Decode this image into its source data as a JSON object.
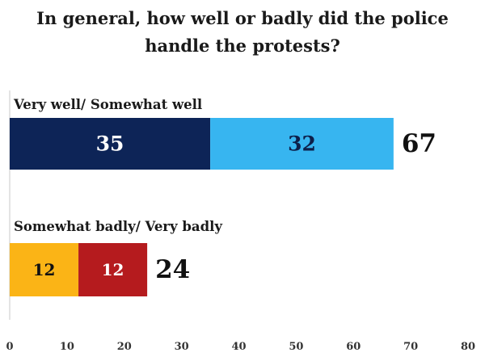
{
  "chart_data": {
    "type": "bar",
    "orientation": "horizontal",
    "stacked": true,
    "title": "In general, how well or badly did the police handle the protests?",
    "title_lines": [
      "In general, how well or badly did the police",
      "handle the protests?"
    ],
    "xlabel": "",
    "ylabel": "",
    "xlim": [
      0,
      80
    ],
    "x_ticks": [
      "0",
      "10",
      "20",
      "30",
      "40",
      "50",
      "60",
      "70",
      "80"
    ],
    "grid": false,
    "legend": "none",
    "groups": [
      {
        "label": "Very well/ Somewhat well",
        "total": "67",
        "segments": [
          {
            "value": 35,
            "label": "35",
            "color": "#0d2457",
            "text_color": "#ffffff"
          },
          {
            "value": 32,
            "label": "32",
            "color": "#37b5f0",
            "text_color": "#0d1f4a"
          }
        ]
      },
      {
        "label": "Somewhat badly/ Very badly",
        "total": "24",
        "segments": [
          {
            "value": 12,
            "label": "12",
            "color": "#fbb416",
            "text_color": "#111111"
          },
          {
            "value": 12,
            "label": "12",
            "color": "#b51b1e",
            "text_color": "#ffffff"
          }
        ]
      }
    ]
  }
}
